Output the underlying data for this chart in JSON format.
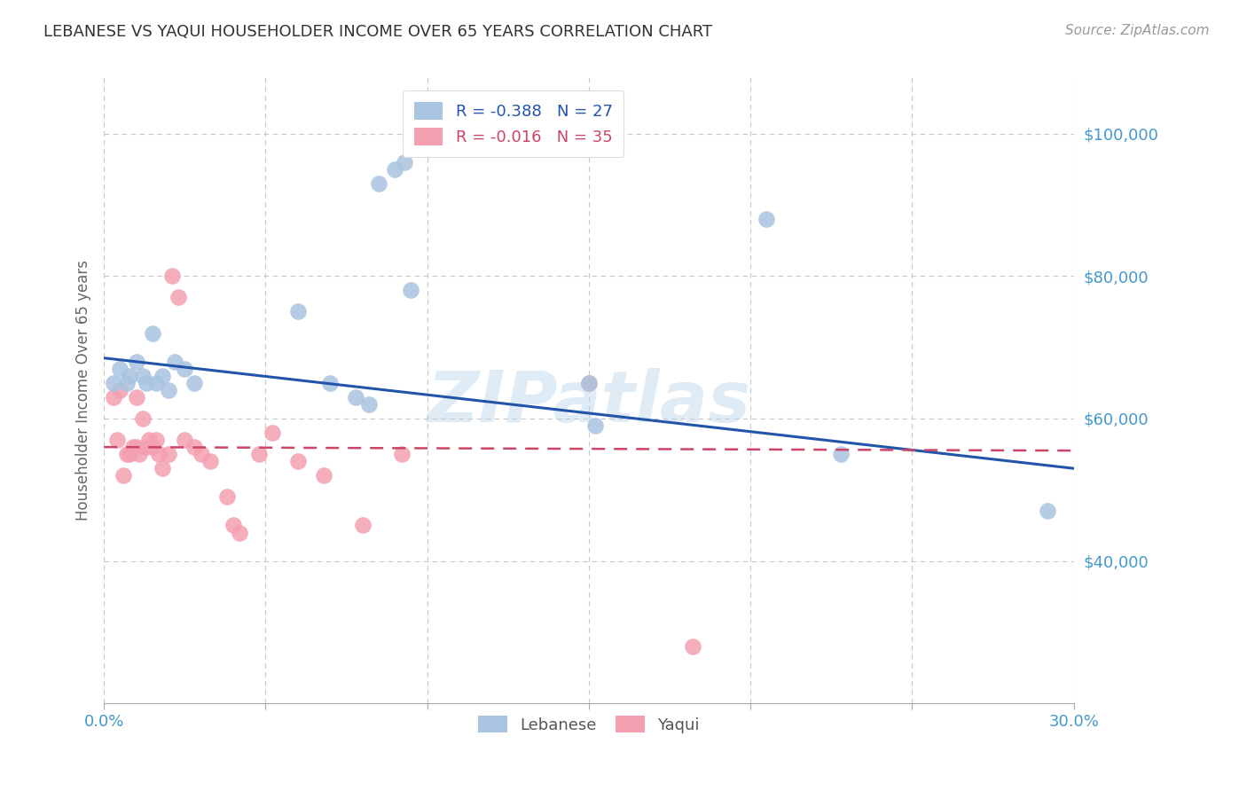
{
  "title": "LEBANESE VS YAQUI HOUSEHOLDER INCOME OVER 65 YEARS CORRELATION CHART",
  "source": "Source: ZipAtlas.com",
  "ylabel": "Householder Income Over 65 years",
  "xlim": [
    0.0,
    0.3
  ],
  "ylim": [
    20000,
    108000
  ],
  "yticks": [
    40000,
    60000,
    80000,
    100000
  ],
  "ytick_labels": [
    "$40,000",
    "$60,000",
    "$80,000",
    "$100,000"
  ],
  "xticks": [
    0.0,
    0.05,
    0.1,
    0.15,
    0.2,
    0.25,
    0.3
  ],
  "xtick_labels": [
    "0.0%",
    "",
    "",
    "",
    "",
    "",
    "30.0%"
  ],
  "background_color": "#ffffff",
  "grid_color": "#c8c8c8",
  "legend_R1": "R = -0.388",
  "legend_N1": "N = 27",
  "legend_R2": "R = -0.016",
  "legend_N2": "N = 35",
  "blue_color": "#a8c4e0",
  "pink_color": "#f4a0b0",
  "blue_line_color": "#2255aa",
  "pink_line_color": "#cc4466",
  "axis_color": "#4499cc",
  "watermark": "ZIPatlas",
  "lebanese_x": [
    0.003,
    0.005,
    0.007,
    0.008,
    0.01,
    0.012,
    0.013,
    0.015,
    0.016,
    0.018,
    0.02,
    0.022,
    0.025,
    0.028,
    0.06,
    0.07,
    0.078,
    0.082,
    0.085,
    0.09,
    0.093,
    0.095,
    0.15,
    0.152,
    0.205,
    0.228,
    0.292
  ],
  "lebanese_y": [
    65000,
    67000,
    65000,
    66000,
    68000,
    66000,
    65000,
    72000,
    65000,
    66000,
    64000,
    68000,
    67000,
    65000,
    75000,
    65000,
    63000,
    62000,
    93000,
    95000,
    96000,
    78000,
    65000,
    59000,
    88000,
    55000,
    47000
  ],
  "yaqui_x": [
    0.003,
    0.004,
    0.005,
    0.006,
    0.007,
    0.008,
    0.009,
    0.01,
    0.01,
    0.011,
    0.012,
    0.013,
    0.014,
    0.015,
    0.016,
    0.017,
    0.018,
    0.02,
    0.021,
    0.023,
    0.025,
    0.028,
    0.03,
    0.033,
    0.038,
    0.04,
    0.042,
    0.048,
    0.052,
    0.06,
    0.068,
    0.08,
    0.092,
    0.15,
    0.182
  ],
  "yaqui_y": [
    63000,
    57000,
    64000,
    52000,
    55000,
    55000,
    56000,
    56000,
    63000,
    55000,
    60000,
    56000,
    57000,
    56000,
    57000,
    55000,
    53000,
    55000,
    80000,
    77000,
    57000,
    56000,
    55000,
    54000,
    49000,
    45000,
    44000,
    55000,
    58000,
    54000,
    52000,
    45000,
    55000,
    65000,
    28000
  ],
  "blue_line_x0": 0.0,
  "blue_line_y0": 68500,
  "blue_line_x1": 0.3,
  "blue_line_y1": 53000,
  "pink_line_x0": 0.0,
  "pink_line_y0": 56000,
  "pink_line_x1": 0.3,
  "pink_line_y1": 55500
}
